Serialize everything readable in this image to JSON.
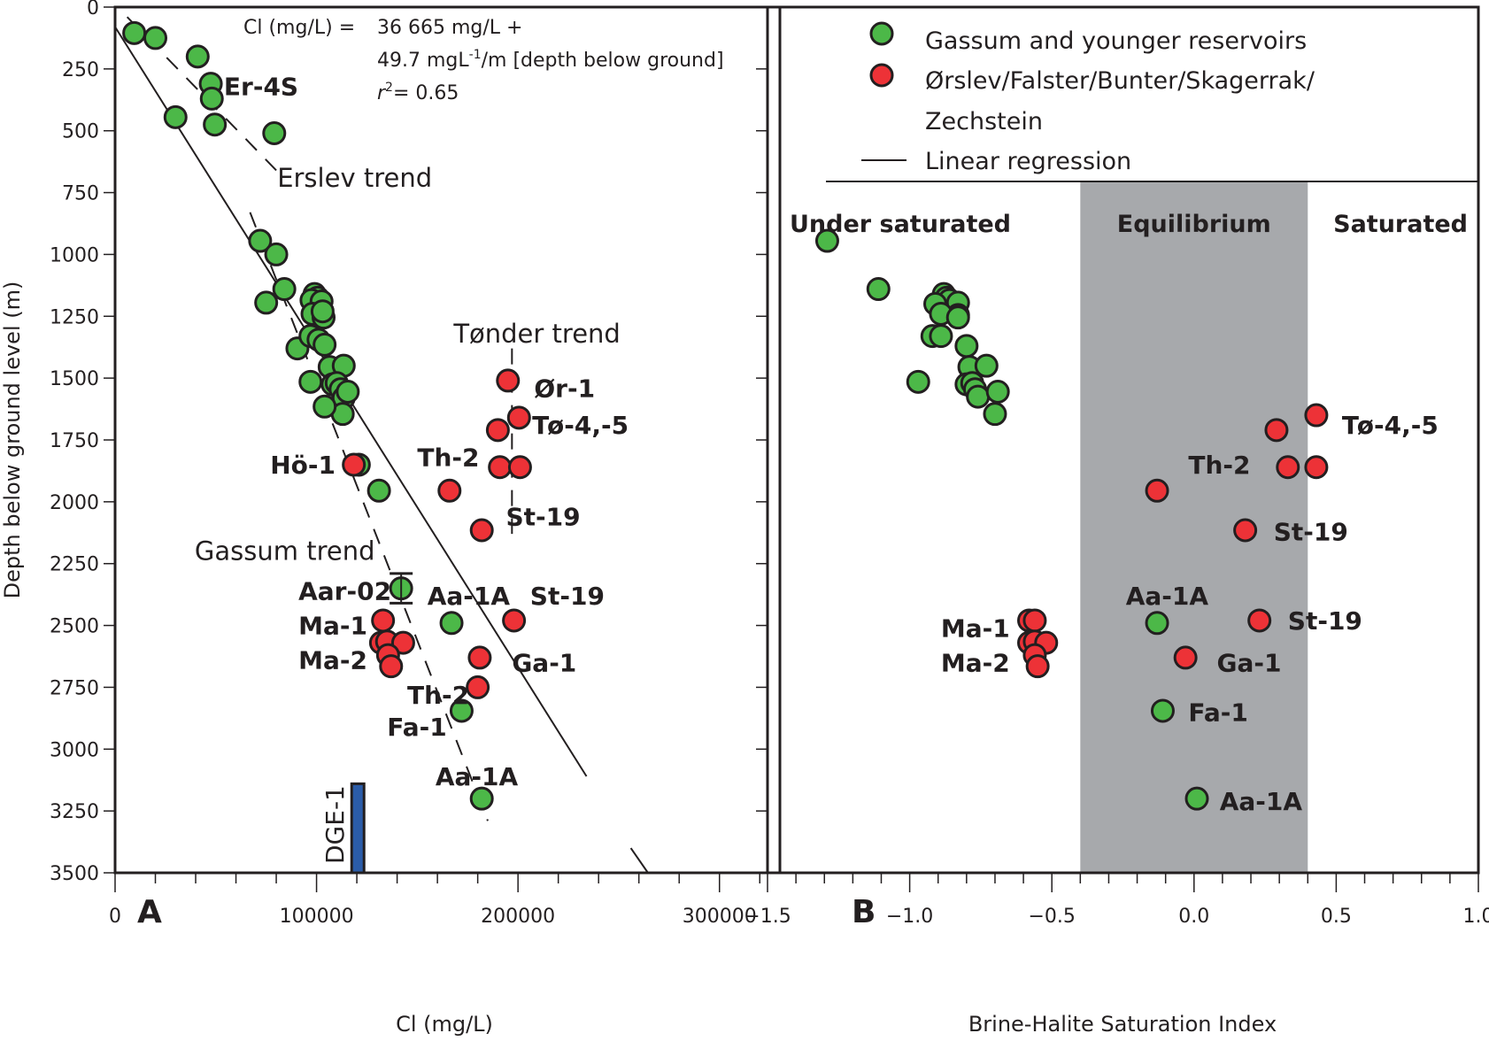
{
  "chart_data": [
    {
      "panel": "A",
      "type": "scatter",
      "title": "",
      "xlabel": "Cl (mg/L)",
      "ylabel": "Depth below ground level (m)",
      "xlim": [
        0,
        330000
      ],
      "ylim": [
        3500,
        0
      ],
      "x_ticks": [
        0,
        100000,
        200000,
        300000
      ],
      "x_tick_labels": [
        "0",
        "100000",
        "200000",
        "300000"
      ],
      "y_ticks": [
        0,
        250,
        500,
        750,
        1000,
        1250,
        1500,
        1750,
        2000,
        2250,
        2500,
        2750,
        3000,
        3250,
        3500
      ],
      "y_tick_labels": [
        "0",
        "250",
        "500",
        "750",
        "1000",
        "1250",
        "1500",
        "1750",
        "2000",
        "2250",
        "2500",
        "2750",
        "3000",
        "3250",
        "3500"
      ],
      "grid": false,
      "panel_letter": "A",
      "equation": {
        "line1_prefix": "Cl (mg/L) =",
        "line1_value": "36 665 mg/L +",
        "line2": "49.7 mgL",
        "line2_sup": "-1",
        "line2_rest": "/m [depth below ground]",
        "line3_r": "r",
        "line3_sup": "2",
        "line3_rest": "= 0.65"
      },
      "series": [
        {
          "name": "Gassum and younger reservoirs",
          "color": "#4cb848",
          "points": [
            [
              9500,
              105
            ],
            [
              20000,
              125
            ],
            [
              41000,
              200
            ],
            [
              47500,
              310
            ],
            [
              48000,
              370
            ],
            [
              49500,
              475
            ],
            [
              30000,
              445
            ],
            [
              79000,
              510
            ],
            [
              72000,
              945
            ],
            [
              80000,
              1000
            ],
            [
              84000,
              1140
            ],
            [
              75000,
              1195
            ],
            [
              99000,
              1160
            ],
            [
              100500,
              1175
            ],
            [
              97500,
              1185
            ],
            [
              102500,
              1190
            ],
            [
              98000,
              1240
            ],
            [
              103500,
              1255
            ],
            [
              103000,
              1230
            ],
            [
              90500,
              1380
            ],
            [
              97000,
              1330
            ],
            [
              101000,
              1345
            ],
            [
              104000,
              1365
            ],
            [
              106500,
              1455
            ],
            [
              113500,
              1450
            ],
            [
              97000,
              1515
            ],
            [
              108000,
              1525
            ],
            [
              110000,
              1520
            ],
            [
              112000,
              1545
            ],
            [
              113500,
              1580
            ],
            [
              115500,
              1555
            ],
            [
              113000,
              1645
            ],
            [
              104000,
              1615
            ],
            [
              121000,
              1850
            ],
            [
              131000,
              1955
            ],
            [
              142000,
              2350
            ],
            [
              167000,
              2490
            ],
            [
              172000,
              2845
            ],
            [
              182000,
              3200
            ]
          ]
        },
        {
          "name": "Ørslev/Falster/Bunter/Skagerrak/Zechstein",
          "color": "#ed3237",
          "points": [
            [
              118500,
              1850
            ],
            [
              195000,
              1510
            ],
            [
              200500,
              1660
            ],
            [
              190000,
              1710
            ],
            [
              191000,
              1860
            ],
            [
              201000,
              1860
            ],
            [
              166000,
              1955
            ],
            [
              182000,
              2115
            ],
            [
              133000,
              2480
            ],
            [
              198000,
              2480
            ],
            [
              132000,
              2570
            ],
            [
              135000,
              2565
            ],
            [
              143000,
              2570
            ],
            [
              135500,
              2620
            ],
            [
              137000,
              2665
            ],
            [
              181000,
              2630
            ],
            [
              180000,
              2750
            ]
          ]
        }
      ],
      "aar02_error_bar": {
        "cl": 142000,
        "depth": 2350,
        "depth_min": 2290,
        "depth_max": 2410
      },
      "regression_line": {
        "name": "Linear regression",
        "intercept_mg_l": 36665,
        "slope_mg_l_per_m": 49.7,
        "segments": [
          [
            [
              0,
              80
            ],
            [
              234000,
              3110
            ]
          ],
          [
            [
              256000,
              3400
            ],
            [
              264500,
              3500
            ]
          ]
        ]
      },
      "trend_lines": [
        {
          "name": "Erslev trend",
          "points": [
            [
              6000,
              40
            ],
            [
              80000,
              660
            ]
          ]
        },
        {
          "name": "Gassum trend",
          "points": [
            [
              67000,
              830
            ],
            [
              185000,
              3290
            ]
          ]
        },
        {
          "name": "Tønder trend",
          "points": [
            [
              197000,
              1380
            ],
            [
              197000,
              2130
            ]
          ]
        }
      ],
      "dge1_bar": {
        "label": "DGE-1",
        "cl": 120500,
        "depth_top": 3140,
        "depth_bottom": 3500,
        "color": "#2b5ca8"
      },
      "annotations": [
        {
          "text": "Er-4S",
          "cl": 54000,
          "depth": 320,
          "bold": true
        },
        {
          "text": "Erslev trend",
          "cl": 80500,
          "depth": 690,
          "bold": false
        },
        {
          "text": "Tønder trend",
          "cl": 168000,
          "depth": 1320,
          "bold": false
        },
        {
          "text": "Ør-1",
          "cl": 208000,
          "depth": 1540,
          "bold": true
        },
        {
          "text": "Tø-4,-5",
          "cl": 207000,
          "depth": 1690,
          "bold": true
        },
        {
          "text": "Th-2",
          "cl": 150000,
          "depth": 1820,
          "bold": true
        },
        {
          "text": "Hö-1",
          "cl": 77000,
          "depth": 1850,
          "bold": true
        },
        {
          "text": "St-19",
          "cl": 194000,
          "depth": 2060,
          "bold": true
        },
        {
          "text": "Gassum trend",
          "cl": 39500,
          "depth": 2200,
          "bold": false
        },
        {
          "text": "Aar-02",
          "cl": 91000,
          "depth": 2360,
          "bold": true
        },
        {
          "text": "Aa-1A",
          "cl": 155000,
          "depth": 2380,
          "bold": true
        },
        {
          "text": "St-19",
          "cl": 206000,
          "depth": 2380,
          "bold": true
        },
        {
          "text": "Ma-1",
          "cl": 91000,
          "depth": 2500,
          "bold": true
        },
        {
          "text": "Ma-2",
          "cl": 91000,
          "depth": 2640,
          "bold": true
        },
        {
          "text": "Ga-1",
          "cl": 197000,
          "depth": 2650,
          "bold": true
        },
        {
          "text": "Th-2",
          "cl": 145000,
          "depth": 2780,
          "bold": true
        },
        {
          "text": "Fa-1",
          "cl": 135000,
          "depth": 2910,
          "bold": true
        },
        {
          "text": "Aa-1A",
          "cl": 159000,
          "depth": 3110,
          "bold": true
        }
      ]
    },
    {
      "panel": "B",
      "type": "scatter",
      "title": "",
      "xlabel": "Brine-Halite Saturation Index",
      "ylabel": "",
      "xlim": [
        -1.5,
        1.0
      ],
      "ylim": [
        3500,
        0
      ],
      "x_ticks": [
        -1.5,
        -1.0,
        -0.5,
        0.0,
        0.5,
        1.0
      ],
      "x_tick_labels": [
        "−1.5",
        "−1.0",
        "−0.5",
        "0.0",
        "0.5",
        "1.0"
      ],
      "grid": false,
      "panel_letter": "B",
      "zones": [
        {
          "label": "Under saturated",
          "from": -1.5,
          "to": -0.4,
          "color": "#ffffff"
        },
        {
          "label": "Equilibrium",
          "from": -0.4,
          "to": 0.4,
          "color": "#a7a9ac"
        },
        {
          "label": "Saturated",
          "from": 0.4,
          "to": 1.0,
          "color": "#ffffff"
        }
      ],
      "legend": {
        "placement": "top",
        "items": [
          {
            "label": "Gassum and younger reservoirs",
            "marker": "circle",
            "color": "#4cb848"
          },
          {
            "label": "Ørslev/Falster/Bunter/Skagerrak/",
            "label_line2": "Zechstein",
            "marker": "circle",
            "color": "#ed3237"
          },
          {
            "label": "Linear regression",
            "marker": "line",
            "color": "#231f20"
          }
        ]
      },
      "series": [
        {
          "name": "Gassum and younger reservoirs",
          "color": "#4cb848",
          "points": [
            [
              -1.29,
              945
            ],
            [
              -1.11,
              1140
            ],
            [
              -0.88,
              1160
            ],
            [
              -0.87,
              1175
            ],
            [
              -0.86,
              1185
            ],
            [
              -0.83,
              1195
            ],
            [
              -0.91,
              1200
            ],
            [
              -0.83,
              1245
            ],
            [
              -0.89,
              1240
            ],
            [
              -0.83,
              1255
            ],
            [
              -0.92,
              1330
            ],
            [
              -0.89,
              1330
            ],
            [
              -0.8,
              1370
            ],
            [
              -0.79,
              1455
            ],
            [
              -0.73,
              1450
            ],
            [
              -0.97,
              1515
            ],
            [
              -0.8,
              1525
            ],
            [
              -0.78,
              1520
            ],
            [
              -0.77,
              1545
            ],
            [
              -0.76,
              1575
            ],
            [
              -0.69,
              1555
            ],
            [
              -0.7,
              1645
            ],
            [
              -0.13,
              2490
            ],
            [
              -0.11,
              2845
            ],
            [
              0.01,
              3200
            ]
          ]
        },
        {
          "name": "Ørslev/Falster/Bunter/Skagerrak/Zechstein",
          "color": "#ed3237",
          "points": [
            [
              0.43,
              1650
            ],
            [
              0.29,
              1710
            ],
            [
              0.33,
              1860
            ],
            [
              0.43,
              1860
            ],
            [
              -0.13,
              1955
            ],
            [
              0.18,
              2115
            ],
            [
              -0.58,
              2480
            ],
            [
              -0.56,
              2480
            ],
            [
              0.23,
              2480
            ],
            [
              -0.58,
              2570
            ],
            [
              -0.56,
              2565
            ],
            [
              -0.52,
              2570
            ],
            [
              -0.56,
              2620
            ],
            [
              -0.55,
              2665
            ],
            [
              -0.03,
              2630
            ]
          ]
        }
      ],
      "annotations": [
        {
          "text": "Tø-4,-5",
          "si": 0.52,
          "depth": 1690
        },
        {
          "text": "Th-2",
          "si": -0.02,
          "depth": 1850
        },
        {
          "text": "St-19",
          "si": 0.28,
          "depth": 2120
        },
        {
          "text": "Aa-1A",
          "si": -0.24,
          "depth": 2380
        },
        {
          "text": "St-19",
          "si": 0.33,
          "depth": 2480
        },
        {
          "text": "Ma-1",
          "si": -0.89,
          "depth": 2510
        },
        {
          "text": "Ga-1",
          "si": 0.08,
          "depth": 2650
        },
        {
          "text": "Ma-2",
          "si": -0.89,
          "depth": 2650
        },
        {
          "text": "Fa-1",
          "si": -0.02,
          "depth": 2850
        },
        {
          "text": "Aa-1A",
          "si": 0.09,
          "depth": 3210
        }
      ]
    }
  ]
}
